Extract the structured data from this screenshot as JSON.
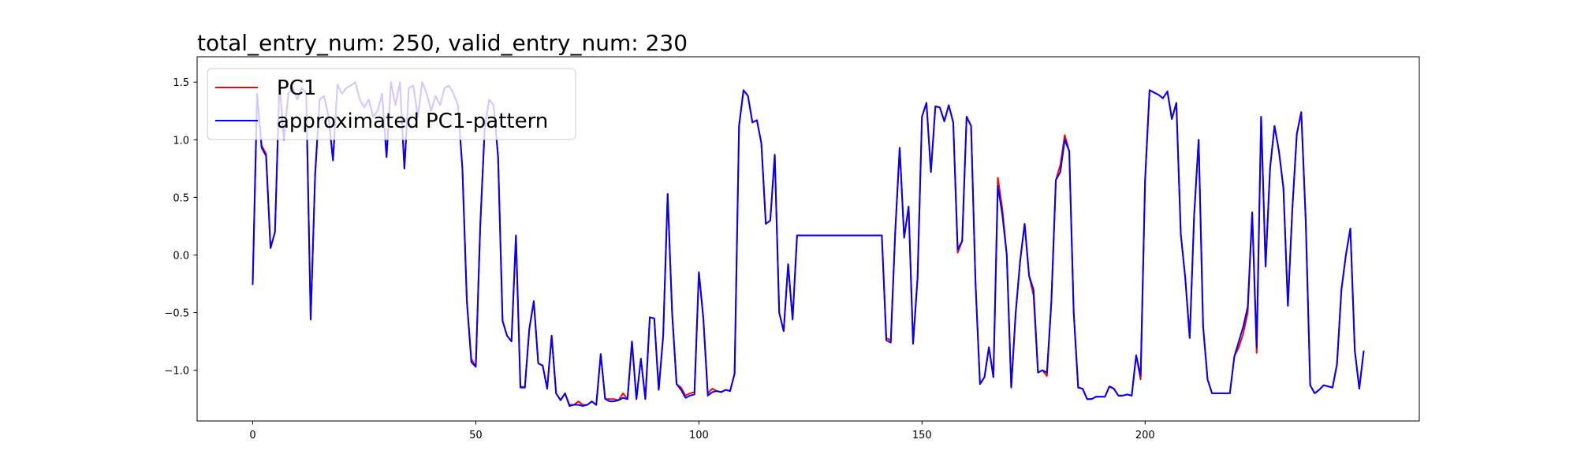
{
  "chart_data": {
    "type": "line",
    "title": "total_entry_num: 250, valid_entry_num: 230",
    "x": [
      0,
      1,
      2,
      3,
      4,
      5,
      6,
      7,
      8,
      9,
      10,
      11,
      12,
      13,
      14,
      15,
      16,
      17,
      18,
      19,
      20,
      21,
      22,
      23,
      24,
      25,
      26,
      27,
      28,
      29,
      30,
      31,
      32,
      33,
      34,
      35,
      36,
      37,
      38,
      39,
      40,
      41,
      42,
      43,
      44,
      45,
      46,
      47,
      48,
      49,
      50,
      51,
      52,
      53,
      54,
      55,
      56,
      57,
      58,
      59,
      60,
      61,
      62,
      63,
      64,
      65,
      66,
      67,
      68,
      69,
      70,
      71,
      72,
      73,
      74,
      75,
      76,
      77,
      78,
      79,
      80,
      81,
      82,
      83,
      84,
      85,
      86,
      87,
      88,
      89,
      90,
      91,
      92,
      93,
      94,
      95,
      96,
      97,
      98,
      99,
      100,
      101,
      102,
      103,
      104,
      105,
      106,
      107,
      108,
      109,
      110,
      111,
      112,
      113,
      114,
      115,
      116,
      117,
      118,
      119,
      120,
      121,
      122,
      123,
      124,
      125,
      126,
      127,
      128,
      129,
      130,
      131,
      132,
      133,
      134,
      135,
      136,
      137,
      138,
      139,
      140,
      141,
      142,
      143,
      144,
      145,
      146,
      147,
      148,
      149,
      150,
      151,
      152,
      153,
      154,
      155,
      156,
      157,
      158,
      159,
      160,
      161,
      162,
      163,
      164,
      165,
      166,
      167,
      168,
      169,
      170,
      171,
      172,
      173,
      174,
      175,
      176,
      177,
      178,
      179,
      180,
      181,
      182,
      183,
      184,
      185,
      186,
      187,
      188,
      189,
      190,
      191,
      192,
      193,
      194,
      195,
      196,
      197,
      198,
      199,
      200,
      201,
      202,
      203,
      204,
      205,
      206,
      207,
      208,
      209,
      210,
      211,
      212,
      213,
      214,
      215,
      216,
      217,
      218,
      219,
      220,
      221,
      222,
      223,
      224,
      225,
      226,
      227,
      228,
      229,
      230,
      231,
      232,
      233,
      234,
      235,
      236,
      237,
      238,
      239,
      240,
      241,
      242,
      243,
      244,
      245,
      246,
      247,
      248,
      249
    ],
    "series": [
      {
        "name": "PC1",
        "color": "#ff0000",
        "values": [
          -0.26,
          1.4,
          0.95,
          0.88,
          0.06,
          0.2,
          1.5,
          1.0,
          1.4,
          1.45,
          1.35,
          1.45,
          1.4,
          -0.56,
          0.7,
          1.35,
          1.38,
          1.2,
          0.82,
          1.48,
          1.4,
          1.45,
          1.47,
          1.5,
          1.35,
          1.28,
          1.35,
          1.2,
          1.25,
          1.4,
          0.85,
          1.5,
          1.3,
          1.5,
          0.75,
          1.45,
          1.47,
          1.2,
          1.5,
          1.4,
          1.25,
          1.38,
          1.3,
          1.45,
          1.47,
          1.4,
          1.3,
          0.75,
          -0.4,
          -0.9,
          -0.97,
          0.25,
          1.1,
          1.35,
          1.3,
          0.85,
          -0.57,
          -0.7,
          -0.75,
          0.17,
          -1.14,
          -1.15,
          -0.64,
          -0.4,
          -0.94,
          -0.96,
          -1.16,
          -0.7,
          -1.2,
          -1.26,
          -1.2,
          -1.3,
          -1.3,
          -1.27,
          -1.3,
          -1.3,
          -1.27,
          -1.3,
          -0.86,
          -1.25,
          -1.25,
          -1.25,
          -1.26,
          -1.2,
          -1.25,
          -0.75,
          -1.25,
          -0.9,
          -1.25,
          -0.54,
          -0.55,
          -1.17,
          -0.7,
          0.53,
          -0.5,
          -1.12,
          -1.15,
          -1.22,
          -1.2,
          -1.19,
          -0.15,
          -0.55,
          -1.2,
          -1.16,
          -1.18,
          -1.19,
          -1.17,
          -1.18,
          -1.03,
          1.12,
          1.43,
          1.38,
          1.15,
          1.17,
          0.97,
          0.27,
          0.3,
          0.87,
          -0.5,
          -0.66,
          -0.08,
          -0.56,
          0.17,
          0.17,
          0.17,
          0.17,
          0.17,
          0.17,
          0.17,
          0.17,
          0.17,
          0.17,
          0.17,
          0.17,
          0.17,
          0.17,
          0.17,
          0.17,
          0.17,
          0.17,
          0.17,
          0.17,
          -0.72,
          -0.74,
          0.2,
          0.93,
          0.15,
          0.42,
          -0.77,
          -0.2,
          1.2,
          1.32,
          0.72,
          1.29,
          1.28,
          1.16,
          1.3,
          1.15,
          0.02,
          0.12,
          1.2,
          1.12,
          -0.25,
          -1.12,
          -1.06,
          -0.8,
          -1.06,
          0.67,
          0.4,
          0.0,
          -1.15,
          -0.5,
          -0.05,
          0.27,
          -0.18,
          -0.35,
          -1.02,
          -1.0,
          -1.05,
          -0.4,
          0.65,
          0.78,
          1.04,
          0.9,
          -0.5,
          -1.15,
          -1.16,
          -1.25,
          -1.25,
          -1.23,
          -1.23,
          -1.23,
          -1.14,
          -1.16,
          -1.22,
          -1.22,
          -1.21,
          -1.22,
          -0.87,
          -1.08,
          0.65,
          1.43,
          1.41,
          1.39,
          1.36,
          1.42,
          1.18,
          1.32,
          0.18,
          -0.2,
          -0.72,
          0.35,
          1.0,
          -0.62,
          -1.08,
          -1.2,
          -1.2,
          -1.2,
          -1.2,
          -1.2,
          -0.88,
          -0.8,
          -0.68,
          -0.5,
          0.37,
          -0.85,
          1.2,
          -0.1,
          0.75,
          1.12,
          0.9,
          0.58,
          -0.44,
          0.4,
          1.05,
          1.24,
          0.3,
          -1.13,
          -1.2,
          -1.17,
          -1.13,
          -1.14,
          -1.15,
          -0.95,
          -0.3,
          0.0,
          0.23,
          -0.83,
          -1.16,
          -0.83
        ]
      },
      {
        "name": "approximated PC1-pattern",
        "color": "#0000ff",
        "values": [
          -0.26,
          1.4,
          0.93,
          0.86,
          0.06,
          0.2,
          1.5,
          1.0,
          1.4,
          1.45,
          1.35,
          1.45,
          1.4,
          -0.56,
          0.7,
          1.35,
          1.38,
          1.2,
          0.82,
          1.48,
          1.4,
          1.45,
          1.47,
          1.5,
          1.35,
          1.28,
          1.35,
          1.2,
          1.25,
          1.4,
          0.85,
          1.5,
          1.3,
          1.5,
          0.75,
          1.45,
          1.47,
          1.2,
          1.5,
          1.4,
          1.25,
          1.38,
          1.3,
          1.45,
          1.47,
          1.4,
          1.3,
          0.75,
          -0.4,
          -0.93,
          -0.97,
          0.25,
          1.1,
          1.35,
          1.3,
          0.85,
          -0.57,
          -0.7,
          -0.75,
          0.17,
          -1.15,
          -1.15,
          -0.64,
          -0.4,
          -0.94,
          -0.96,
          -1.16,
          -0.7,
          -1.2,
          -1.26,
          -1.2,
          -1.31,
          -1.3,
          -1.3,
          -1.31,
          -1.3,
          -1.27,
          -1.3,
          -0.86,
          -1.25,
          -1.27,
          -1.27,
          -1.26,
          -1.24,
          -1.25,
          -0.75,
          -1.25,
          -0.9,
          -1.25,
          -0.54,
          -0.55,
          -1.17,
          -0.7,
          0.53,
          -0.5,
          -1.12,
          -1.17,
          -1.24,
          -1.22,
          -1.21,
          -0.15,
          -0.55,
          -1.22,
          -1.19,
          -1.18,
          -1.19,
          -1.17,
          -1.18,
          -1.03,
          1.12,
          1.43,
          1.38,
          1.15,
          1.17,
          0.97,
          0.27,
          0.3,
          0.87,
          -0.5,
          -0.66,
          -0.08,
          -0.56,
          0.17,
          0.17,
          0.17,
          0.17,
          0.17,
          0.17,
          0.17,
          0.17,
          0.17,
          0.17,
          0.17,
          0.17,
          0.17,
          0.17,
          0.17,
          0.17,
          0.17,
          0.17,
          0.17,
          0.17,
          -0.74,
          -0.76,
          0.2,
          0.93,
          0.15,
          0.42,
          -0.77,
          -0.2,
          1.2,
          1.32,
          0.72,
          1.29,
          1.28,
          1.16,
          1.3,
          1.15,
          0.05,
          0.12,
          1.2,
          1.12,
          -0.25,
          -1.12,
          -1.06,
          -0.8,
          -1.06,
          0.6,
          0.35,
          0.0,
          -1.15,
          -0.5,
          -0.05,
          0.27,
          -0.18,
          -0.3,
          -1.02,
          -1.0,
          -1.02,
          -0.4,
          0.65,
          0.72,
          1.0,
          0.9,
          -0.5,
          -1.15,
          -1.16,
          -1.25,
          -1.25,
          -1.23,
          -1.23,
          -1.23,
          -1.14,
          -1.16,
          -1.22,
          -1.22,
          -1.21,
          -1.22,
          -0.87,
          -1.05,
          0.65,
          1.43,
          1.41,
          1.39,
          1.36,
          1.42,
          1.18,
          1.32,
          0.18,
          -0.2,
          -0.72,
          0.35,
          1.0,
          -0.62,
          -1.08,
          -1.2,
          -1.2,
          -1.2,
          -1.2,
          -1.2,
          -0.88,
          -0.75,
          -0.62,
          -0.45,
          0.37,
          -0.8,
          1.2,
          -0.1,
          0.75,
          1.12,
          0.9,
          0.58,
          -0.44,
          0.4,
          1.05,
          1.24,
          0.3,
          -1.13,
          -1.2,
          -1.17,
          -1.13,
          -1.14,
          -1.15,
          -0.95,
          -0.3,
          0.0,
          0.23,
          -0.83,
          -1.16,
          -0.83
        ]
      }
    ],
    "xlim": [
      -12.45,
      261.45
    ],
    "xticks": [
      0,
      50,
      100,
      150,
      200
    ],
    "ylim": [
      -1.44,
      1.72
    ],
    "yticks": [
      {
        "value": -1.0,
        "label": "−1.0"
      },
      {
        "value": -0.5,
        "label": "−0.5"
      },
      {
        "value": 0.0,
        "label": "0.0"
      },
      0.5,
      {
        "value": 1.0,
        "label": "1.0"
      },
      1.5
    ],
    "legend": "upper left"
  }
}
